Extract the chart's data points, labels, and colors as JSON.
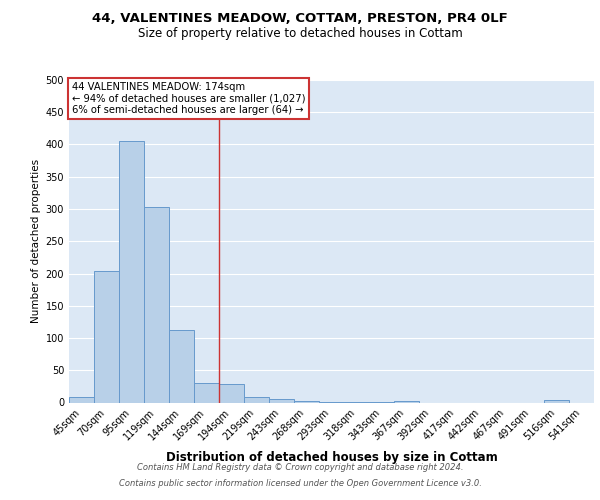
{
  "title_line1": "44, VALENTINES MEADOW, COTTAM, PRESTON, PR4 0LF",
  "title_line2": "Size of property relative to detached houses in Cottam",
  "xlabel": "Distribution of detached houses by size in Cottam",
  "ylabel": "Number of detached properties",
  "bar_labels": [
    "45sqm",
    "70sqm",
    "95sqm",
    "119sqm",
    "144sqm",
    "169sqm",
    "194sqm",
    "219sqm",
    "243sqm",
    "268sqm",
    "293sqm",
    "318sqm",
    "343sqm",
    "367sqm",
    "392sqm",
    "417sqm",
    "442sqm",
    "467sqm",
    "491sqm",
    "516sqm",
    "541sqm"
  ],
  "bar_values": [
    8,
    204,
    405,
    303,
    113,
    30,
    28,
    9,
    5,
    2,
    1,
    1,
    1,
    3,
    0,
    0,
    0,
    0,
    0,
    4,
    0
  ],
  "bar_color": "#b8d0e8",
  "bar_edge_color": "#6699cc",
  "vline_x": 5.5,
  "vline_color": "#cc3333",
  "annotation_text": "44 VALENTINES MEADOW: 174sqm\n← 94% of detached houses are smaller (1,027)\n6% of semi-detached houses are larger (64) →",
  "annotation_box_color": "#ffffff",
  "annotation_box_edge": "#cc3333",
  "ylim": [
    0,
    500
  ],
  "yticks": [
    0,
    50,
    100,
    150,
    200,
    250,
    300,
    350,
    400,
    450,
    500
  ],
  "background_color": "#dce8f5",
  "grid_color": "#ffffff",
  "fig_background": "#ffffff",
  "footnote1": "Contains HM Land Registry data © Crown copyright and database right 2024.",
  "footnote2": "Contains public sector information licensed under the Open Government Licence v3.0."
}
